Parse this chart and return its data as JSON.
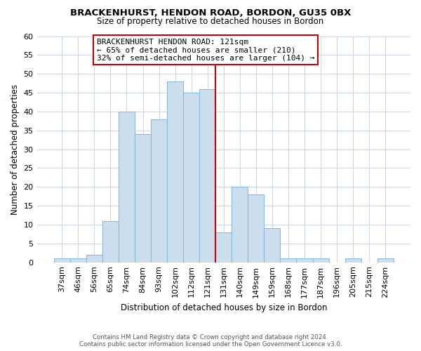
{
  "title": "BRACKENHURST, HENDON ROAD, BORDON, GU35 0BX",
  "subtitle": "Size of property relative to detached houses in Bordon",
  "xlabel": "Distribution of detached houses by size in Bordon",
  "ylabel": "Number of detached properties",
  "bar_color": "#ccdeed",
  "bar_edge_color": "#88bbdd",
  "categories": [
    "37sqm",
    "46sqm",
    "56sqm",
    "65sqm",
    "74sqm",
    "84sqm",
    "93sqm",
    "102sqm",
    "112sqm",
    "121sqm",
    "131sqm",
    "140sqm",
    "149sqm",
    "159sqm",
    "168sqm",
    "177sqm",
    "187sqm",
    "196sqm",
    "205sqm",
    "215sqm",
    "224sqm"
  ],
  "values": [
    1,
    1,
    2,
    11,
    40,
    34,
    38,
    48,
    45,
    46,
    8,
    20,
    18,
    9,
    1,
    1,
    1,
    0,
    1,
    0,
    1
  ],
  "reference_line_x": 9.5,
  "reference_line_color": "#cc0000",
  "ylim": [
    0,
    60
  ],
  "yticks": [
    0,
    5,
    10,
    15,
    20,
    25,
    30,
    35,
    40,
    45,
    50,
    55,
    60
  ],
  "annotation_text_line1": "BRACKENHURST HENDON ROAD: 121sqm",
  "annotation_text_line2": "← 65% of detached houses are smaller (210)",
  "annotation_text_line3": "32% of semi-detached houses are larger (104) →",
  "annotation_box_color": "#ffffff",
  "annotation_box_edge_color": "#cc0000",
  "footer_line1": "Contains HM Land Registry data © Crown copyright and database right 2024.",
  "footer_line2": "Contains public sector information licensed under the Open Government Licence v3.0.",
  "background_color": "#ffffff",
  "grid_color": "#cdd8e3"
}
